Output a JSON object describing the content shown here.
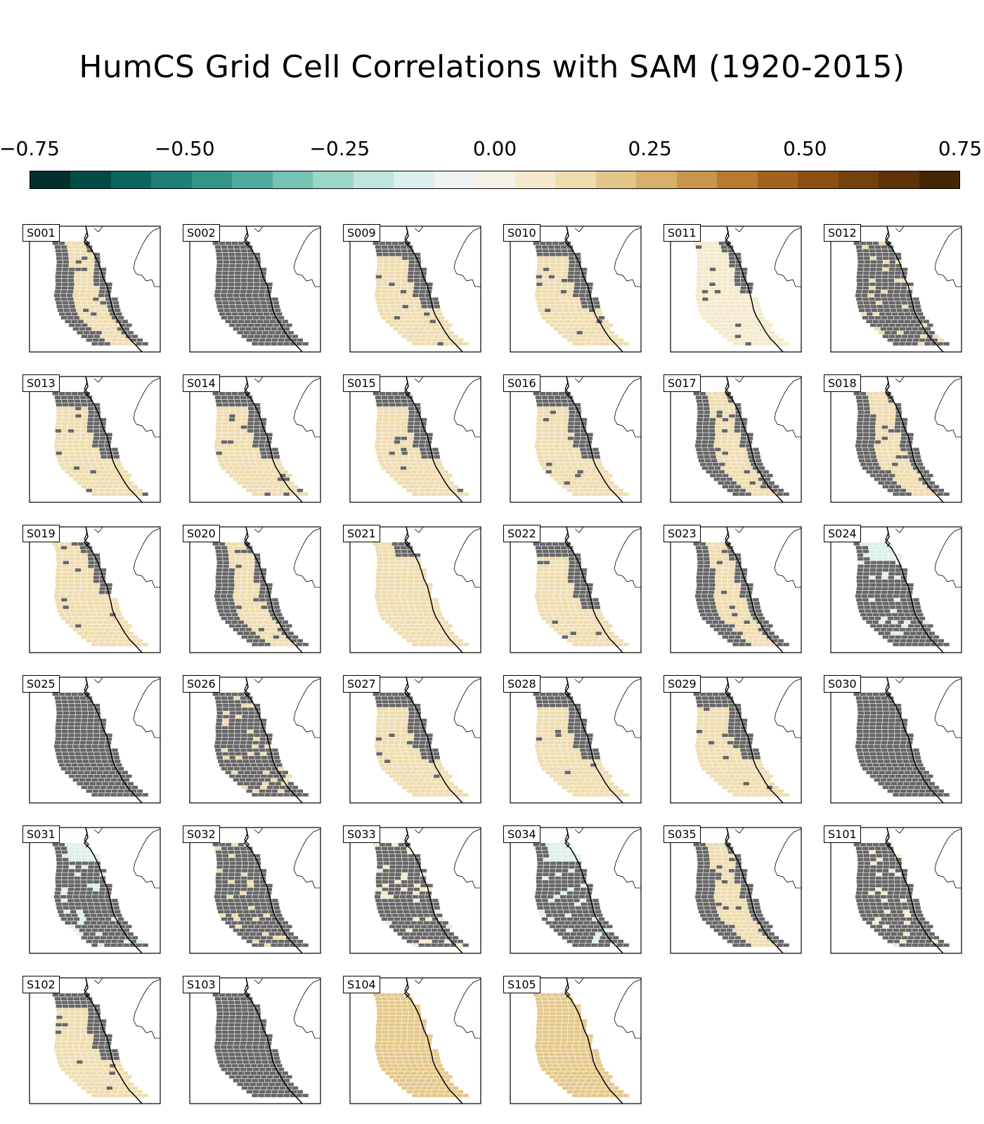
{
  "chart_data": {
    "type": "heatmap",
    "title": "HumCS Grid Cell Correlations with SAM (1920-2015)",
    "colorbar": {
      "range": [
        -0.75,
        0.75
      ],
      "ticks": [
        "−0.75",
        "−0.50",
        "−0.25",
        "0.00",
        "0.25",
        "0.50",
        "0.75"
      ],
      "colors": [
        "#02302b",
        "#034c45",
        "#0c6660",
        "#1f7f77",
        "#35948a",
        "#50aa9e",
        "#74c4b3",
        "#9bd6c9",
        "#bee5de",
        "#dcefec",
        "#ecf3f2",
        "#f4f1e9",
        "#f4e9cc",
        "#efdcaf",
        "#e4c788",
        "#d6b06a",
        "#c9954c",
        "#b97a30",
        "#a4621f",
        "#8e4f14",
        "#75410d",
        "#5e3309",
        "#432606"
      ],
      "insignificant_color": "#666666"
    },
    "panels": [
      {
        "id": "S001",
        "sig": [
          [
            0,
            -1
          ],
          [
            1,
            -1
          ],
          [
            2,
            -1
          ],
          [
            3,
            -1
          ],
          [
            4,
            -1
          ],
          [
            5,
            -1
          ],
          [
            6,
            -1
          ],
          [
            7,
            -1
          ],
          [
            8,
            -1
          ],
          [
            9,
            -1
          ],
          [
            10,
            -1
          ],
          [
            11,
            -1
          ],
          [
            12,
            -1
          ],
          [
            13,
            -1
          ],
          [
            14,
            -1
          ],
          [
            15,
            -1
          ],
          [
            16,
            -1
          ],
          [
            17,
            -1
          ],
          [
            18,
            -1
          ],
          [
            19,
            -1
          ],
          [
            20,
            -1
          ],
          [
            21,
            -1
          ],
          [
            22,
            -1
          ],
          [
            23,
            -1
          ],
          [
            24,
            -1
          ],
          [
            25,
            -1
          ],
          [
            26,
            -1
          ],
          [
            27,
            -1
          ]
        ],
        "ns": [
          [
            0,
            5
          ],
          [
            1,
            4
          ],
          [
            2,
            3
          ],
          [
            3,
            2
          ],
          [
            4,
            1
          ],
          [
            5,
            0
          ],
          [
            6,
            0
          ],
          [
            7,
            0
          ],
          [
            8,
            0
          ],
          [
            9,
            0
          ],
          [
            10,
            0
          ],
          [
            11,
            0
          ],
          [
            12,
            0
          ],
          [
            13,
            0
          ],
          [
            14,
            0
          ],
          [
            15,
            0
          ],
          [
            16,
            0
          ],
          [
            17,
            0
          ],
          [
            18,
            0
          ],
          [
            19,
            0
          ],
          [
            20,
            0
          ],
          [
            21,
            0
          ],
          [
            22,
            0
          ],
          [
            23,
            0
          ],
          [
            24,
            0
          ],
          [
            25,
            0
          ],
          [
            26,
            0
          ],
          [
            27,
            0
          ]
        ],
        "value": 0.12
      },
      {
        "id": "S002",
        "value": null
      },
      {
        "id": "S009",
        "value": 0.15
      },
      {
        "id": "S010",
        "value": 0.1
      },
      {
        "id": "S011",
        "value": 0.08
      },
      {
        "id": "S012",
        "value": 0.1
      },
      {
        "id": "S013",
        "value": 0.12
      },
      {
        "id": "S014",
        "value": 0.14
      },
      {
        "id": "S015",
        "value": 0.15
      },
      {
        "id": "S016",
        "value": 0.12
      },
      {
        "id": "S017",
        "value": 0.1
      },
      {
        "id": "S018",
        "value": 0.1
      },
      {
        "id": "S019",
        "value": 0.1
      },
      {
        "id": "S020",
        "value": 0.1
      },
      {
        "id": "S021",
        "value": 0.16
      },
      {
        "id": "S022",
        "value": 0.12
      },
      {
        "id": "S023",
        "value": 0.12
      },
      {
        "id": "S024",
        "value": -0.1
      },
      {
        "id": "S025",
        "value": null
      },
      {
        "id": "S026",
        "value": 0.1
      },
      {
        "id": "S027",
        "value": 0.12
      },
      {
        "id": "S028",
        "value": 0.12
      },
      {
        "id": "S029",
        "value": 0.12
      },
      {
        "id": "S030",
        "value": null
      },
      {
        "id": "S031",
        "value": -0.12
      },
      {
        "id": "S032",
        "value": 0.1
      },
      {
        "id": "S033",
        "value": 0.05
      },
      {
        "id": "S034",
        "value": -0.12
      },
      {
        "id": "S035",
        "value": 0.1
      },
      {
        "id": "S101",
        "value": 0.05
      },
      {
        "id": "S102",
        "value": 0.12
      },
      {
        "id": "S103",
        "value": null
      },
      {
        "id": "S104",
        "value": 0.17
      },
      {
        "id": "S105",
        "value": 0.17
      }
    ]
  }
}
